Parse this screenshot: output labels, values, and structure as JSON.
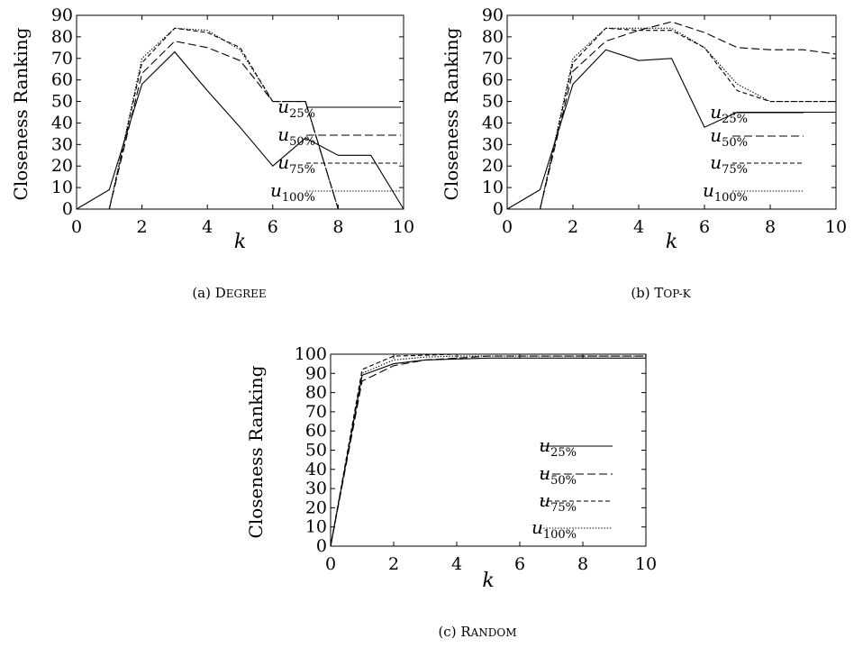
{
  "styles": {
    "u25": "solid",
    "u50": "long-dash",
    "u75": "short-dash",
    "u100": "dotted",
    "color": "#000000"
  },
  "chart_data": [
    {
      "type": "line",
      "caption": {
        "prefix": "(a) ",
        "smallcaps": "Degree"
      },
      "xlabel": "k",
      "ylabel": "Closeness Ranking",
      "xlim": [
        0,
        10
      ],
      "ylim": [
        0,
        90
      ],
      "xticks": [
        0,
        2,
        4,
        6,
        8,
        10
      ],
      "yticks": [
        0,
        10,
        20,
        30,
        40,
        50,
        60,
        70,
        80,
        90
      ],
      "grid": false,
      "legend_position": "right",
      "series": [
        {
          "key": "u25",
          "name_base": "u",
          "name_sub": "25%",
          "x": [
            0,
            1,
            2,
            3,
            4,
            5,
            6,
            7,
            8,
            9,
            10
          ],
          "y": [
            0,
            9,
            58,
            73,
            55,
            38,
            20,
            33,
            25,
            25,
            0
          ]
        },
        {
          "key": "u50",
          "name_base": "u",
          "name_sub": "50%",
          "x": [
            1,
            2,
            3,
            4,
            5,
            6,
            7,
            8
          ],
          "y": [
            0,
            63,
            78,
            75,
            69,
            50,
            50,
            0
          ]
        },
        {
          "key": "u75",
          "name_base": "u",
          "name_sub": "75%",
          "x": [
            1,
            2,
            3,
            4,
            5,
            6,
            7,
            8
          ],
          "y": [
            0,
            68,
            84,
            82,
            75,
            50,
            50,
            0
          ]
        },
        {
          "key": "u100",
          "name_base": "u",
          "name_sub": "100%",
          "x": [
            1,
            2,
            3,
            4,
            5,
            6,
            7,
            8
          ],
          "y": [
            0,
            70,
            84,
            83,
            74,
            50,
            50,
            0
          ]
        }
      ]
    },
    {
      "type": "line",
      "caption": {
        "prefix": "(b) ",
        "smallcaps": "Top-k"
      },
      "xlabel": "k",
      "ylabel": "Closeness Ranking",
      "xlim": [
        0,
        10
      ],
      "ylim": [
        0,
        90
      ],
      "xticks": [
        0,
        2,
        4,
        6,
        8,
        10
      ],
      "yticks": [
        0,
        10,
        20,
        30,
        40,
        50,
        60,
        70,
        80,
        90
      ],
      "grid": false,
      "legend_position": "right",
      "series": [
        {
          "key": "u25",
          "name_base": "u",
          "name_sub": "25%",
          "x": [
            0,
            1,
            2,
            3,
            4,
            5,
            6,
            7,
            8,
            9,
            10
          ],
          "y": [
            0,
            9,
            58,
            74,
            69,
            70,
            38,
            45,
            45,
            45,
            45
          ]
        },
        {
          "key": "u50",
          "name_base": "u",
          "name_sub": "50%",
          "x": [
            1,
            2,
            3,
            4,
            5,
            6,
            7,
            8,
            9,
            10
          ],
          "y": [
            0,
            64,
            78,
            83,
            87,
            82,
            75,
            74,
            74,
            72
          ]
        },
        {
          "key": "u75",
          "name_base": "u",
          "name_sub": "75%",
          "x": [
            1,
            2,
            3,
            4,
            5,
            6,
            7,
            8,
            9,
            10
          ],
          "y": [
            0,
            68,
            84,
            83,
            83,
            75,
            55,
            50,
            50,
            50
          ]
        },
        {
          "key": "u100",
          "name_base": "u",
          "name_sub": "100%",
          "x": [
            1,
            2,
            3,
            4,
            5,
            6,
            7,
            8,
            9,
            10
          ],
          "y": [
            0,
            70,
            84,
            84,
            84,
            75,
            58,
            50,
            50,
            50
          ]
        }
      ]
    },
    {
      "type": "line",
      "caption": {
        "prefix": "(c) ",
        "smallcaps": "Random"
      },
      "xlabel": "k",
      "ylabel": "Closeness Ranking",
      "xlim": [
        0,
        10
      ],
      "ylim": [
        0,
        100
      ],
      "xticks": [
        0,
        2,
        4,
        6,
        8,
        10
      ],
      "yticks": [
        0,
        10,
        20,
        30,
        40,
        50,
        60,
        70,
        80,
        90,
        100
      ],
      "grid": false,
      "legend_position": "right",
      "series": [
        {
          "key": "u25",
          "name_base": "u",
          "name_sub": "25%",
          "x": [
            0,
            1,
            2,
            3,
            4,
            5,
            6,
            7,
            8,
            9,
            10
          ],
          "y": [
            0,
            89,
            95,
            97,
            97.5,
            98,
            98,
            98,
            98,
            98,
            98
          ]
        },
        {
          "key": "u50",
          "name_base": "u",
          "name_sub": "50%",
          "x": [
            0,
            1,
            2,
            3,
            4,
            5,
            6,
            7,
            8,
            9,
            10
          ],
          "y": [
            0,
            86,
            94,
            97,
            98,
            99,
            99,
            99,
            99,
            99,
            99
          ]
        },
        {
          "key": "u75",
          "name_base": "u",
          "name_sub": "75%",
          "x": [
            0,
            1,
            2,
            3,
            4,
            5,
            6,
            7,
            8,
            9,
            10
          ],
          "y": [
            0,
            92,
            99,
            99.5,
            100,
            100,
            100,
            100,
            100,
            100,
            100
          ]
        },
        {
          "key": "u100",
          "name_base": "u",
          "name_sub": "100%",
          "x": [
            0,
            1,
            2,
            3,
            4,
            5,
            6,
            7,
            8,
            9,
            10
          ],
          "y": [
            0,
            90,
            97,
            98.5,
            99,
            99,
            99,
            99,
            99,
            99,
            99
          ]
        }
      ]
    }
  ]
}
